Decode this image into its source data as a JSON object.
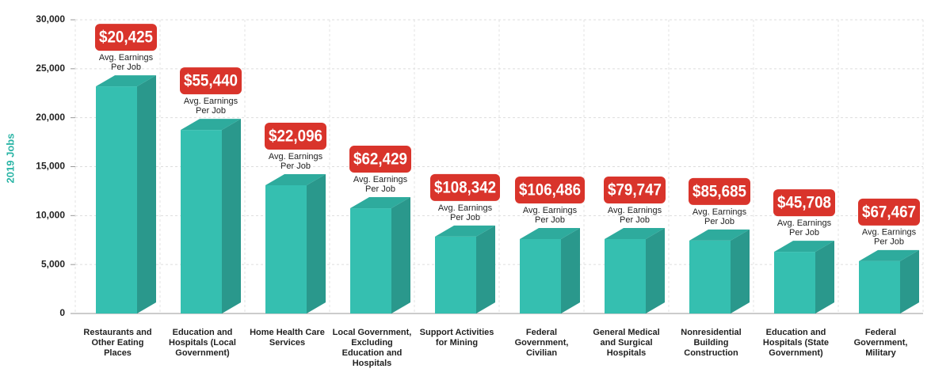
{
  "chart_data": {
    "type": "bar3d",
    "y_label": "2019 Jobs",
    "categories": [
      "Restaurants and Other Eating Places",
      "Education and Hospitals (Local Government)",
      "Home Health Care Services",
      "Local Government, Excluding Education and Hospitals",
      "Support Activities for Mining",
      "Federal Government, Civilian",
      "General Medical and Surgical Hospitals",
      "Nonresidential Building Construction",
      "Education and Hospitals (State Government)",
      "Federal Government, Military"
    ],
    "values": [
      23200,
      18750,
      13100,
      10750,
      7850,
      7600,
      7600,
      7450,
      6300,
      5350
    ],
    "color": "#35bfb0",
    "earnings": {
      "values": [
        20425,
        55440,
        22096,
        62429,
        108342,
        106486,
        79747,
        85685,
        45708,
        67467
      ],
      "value_labels": [
        "$20,425",
        "$55,440",
        "$22,096",
        "$62,429",
        "$108,342",
        "$106,486",
        "$79,747",
        "$85,685",
        "$45,708",
        "$67,467"
      ],
      "caption": [
        "Avg. Earnings",
        "Per Job"
      ],
      "color": "#d9342b"
    },
    "ylim": [
      0,
      30000
    ],
    "yticks": [
      {
        "value": 0,
        "label": "0"
      },
      {
        "value": 5000,
        "label": "5,000"
      },
      {
        "value": 10000,
        "label": "10,000"
      },
      {
        "value": 15000,
        "label": "15,000"
      },
      {
        "value": 20000,
        "label": "20,000"
      },
      {
        "value": 25000,
        "label": "25,000"
      },
      {
        "value": 30000,
        "label": "30,000"
      }
    ],
    "grid": true
  }
}
